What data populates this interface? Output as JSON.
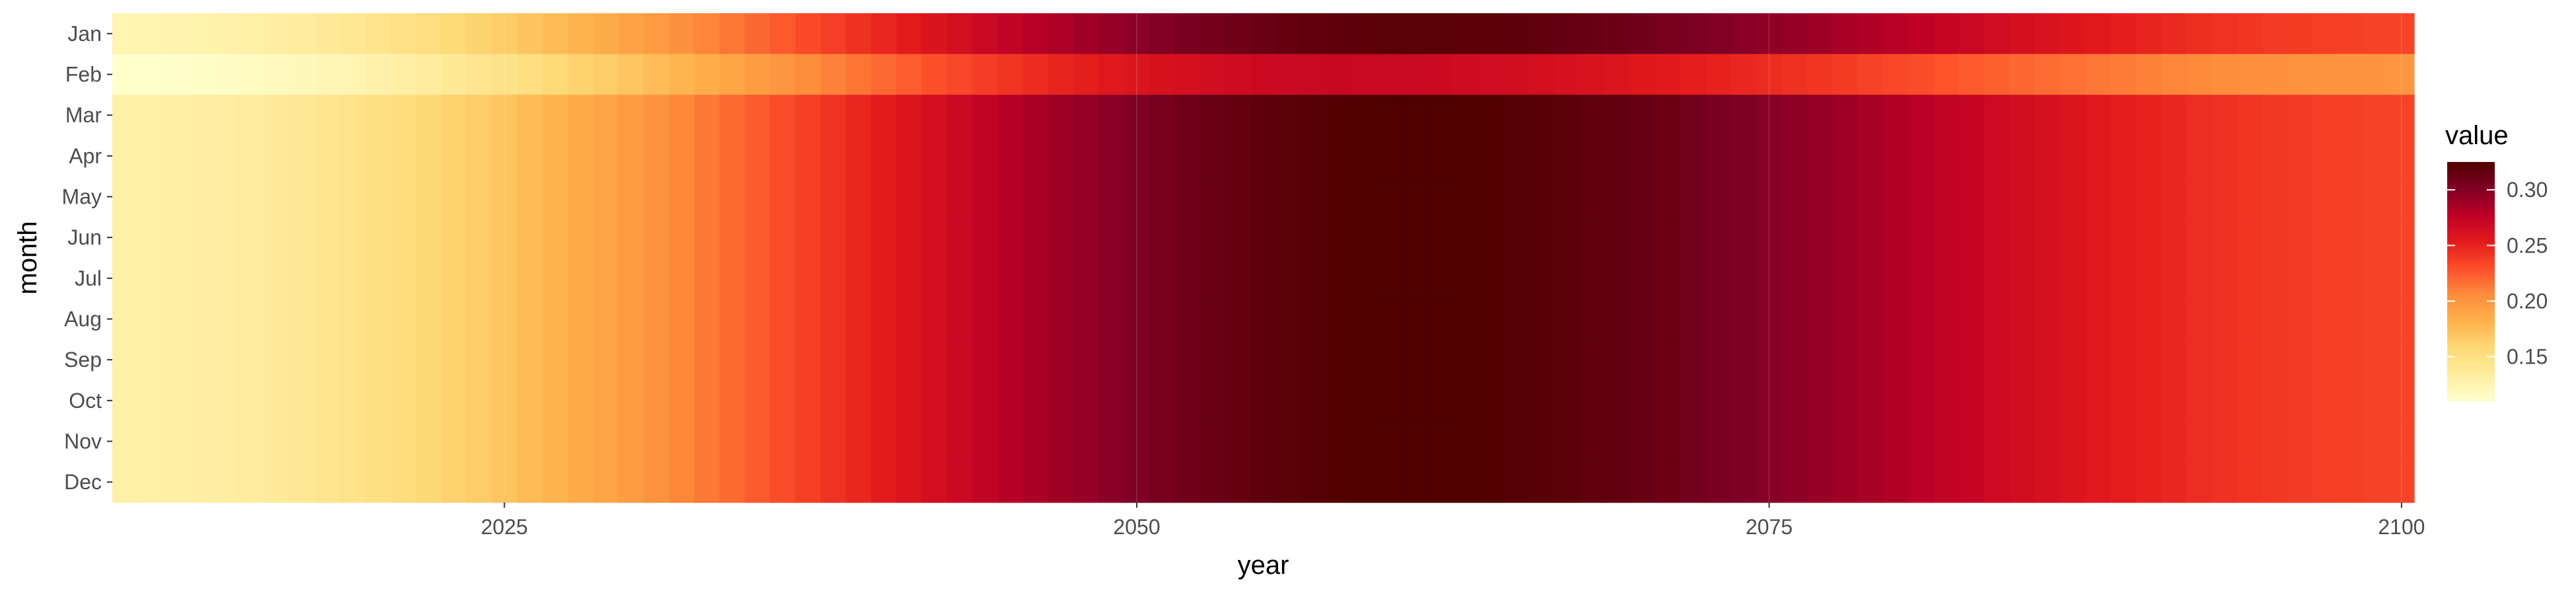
{
  "chart_data": {
    "type": "heatmap",
    "title": "",
    "xlabel": "year",
    "ylabel": "month",
    "x_range": [
      2009.5,
      2100.5
    ],
    "x_ticks": [
      2025,
      2050,
      2075,
      2100
    ],
    "x_tick_labels": [
      "2025",
      "2050",
      "2075",
      "2100"
    ],
    "y_categories": [
      "Jan",
      "Feb",
      "Mar",
      "Apr",
      "May",
      "Jun",
      "Jul",
      "Aug",
      "Sep",
      "Oct",
      "Nov",
      "Dec"
    ],
    "years_first": 2010,
    "years_last": 2100,
    "value_model": {
      "description_of_rows": "month rows share a common rise-and-fall profile over years; Feb is shallower",
      "rows": {
        "Jan": {
          "start": 0.125,
          "peak": 0.32,
          "end": 0.235,
          "peak_year": 2061
        },
        "Feb": {
          "start": 0.11,
          "peak": 0.27,
          "end": 0.2,
          "peak_year": 2058
        },
        "Mar": {
          "start": 0.13,
          "peak": 0.325,
          "end": 0.235,
          "peak_year": 2061
        },
        "Apr": {
          "start": 0.13,
          "peak": 0.325,
          "end": 0.235,
          "peak_year": 2061
        },
        "May": {
          "start": 0.13,
          "peak": 0.325,
          "end": 0.235,
          "peak_year": 2061
        },
        "Jun": {
          "start": 0.13,
          "peak": 0.325,
          "end": 0.235,
          "peak_year": 2061
        },
        "Jul": {
          "start": 0.13,
          "peak": 0.325,
          "end": 0.235,
          "peak_year": 2061
        },
        "Aug": {
          "start": 0.13,
          "peak": 0.325,
          "end": 0.235,
          "peak_year": 2061
        },
        "Sep": {
          "start": 0.13,
          "peak": 0.325,
          "end": 0.235,
          "peak_year": 2061
        },
        "Oct": {
          "start": 0.13,
          "peak": 0.325,
          "end": 0.235,
          "peak_year": 2061
        },
        "Nov": {
          "start": 0.13,
          "peak": 0.325,
          "end": 0.235,
          "peak_year": 2061
        },
        "Dec": {
          "start": 0.13,
          "peak": 0.325,
          "end": 0.235,
          "peak_year": 2061
        }
      }
    },
    "legend": {
      "title": "value",
      "position": "right",
      "breaks": [
        0.15,
        0.2,
        0.25,
        0.3
      ],
      "break_labels": [
        "0.15",
        "0.20",
        "0.25",
        "0.30"
      ],
      "range": [
        0.11,
        0.325
      ]
    },
    "colormap": [
      "#ffffcc",
      "#ffeda0",
      "#fed976",
      "#feb24c",
      "#fd8d3c",
      "#fc4e2a",
      "#e31a1c",
      "#bd0026",
      "#800026",
      "#4f0000"
    ],
    "grid": true,
    "grid_color": "#ffffff",
    "panel_background": "#ebebeb"
  }
}
